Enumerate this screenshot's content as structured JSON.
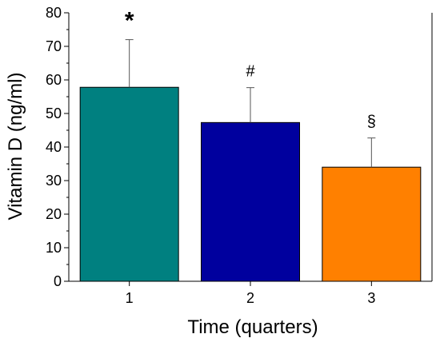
{
  "chart_data": {
    "type": "bar",
    "xlabel": "Time (quarters)",
    "ylabel": "Vitamin D (ng/ml)",
    "categories": [
      "1",
      "2",
      "3"
    ],
    "values": [
      57.8,
      47.3,
      34.0
    ],
    "error_bars": [
      14.2,
      10.4,
      8.7
    ],
    "annotations": [
      "*",
      "#",
      "§"
    ],
    "bar_colors": [
      "#008080",
      "#00009e",
      "#ff8000"
    ],
    "ylim": [
      0,
      80
    ],
    "yticks": [
      "0",
      "10",
      "20",
      "30",
      "40",
      "50",
      "60",
      "70",
      "80"
    ],
    "grid": false,
    "legend": "none"
  }
}
